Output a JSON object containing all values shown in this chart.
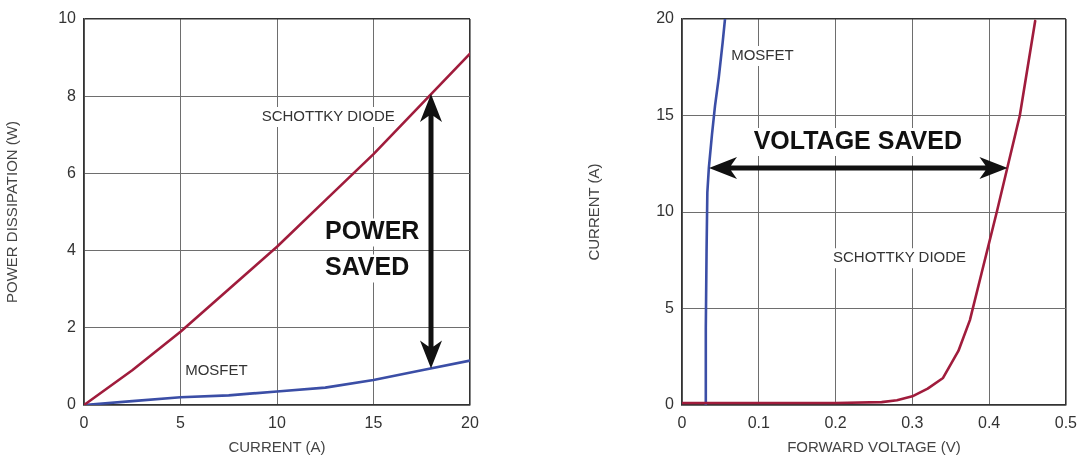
{
  "chart_data": [
    {
      "type": "line",
      "xlabel": "CURRENT (A)",
      "ylabel": "POWER DISSIPATION (W)",
      "xlim": [
        0,
        20
      ],
      "xticks": [
        0,
        5,
        10,
        15,
        20
      ],
      "ylim": [
        0,
        10
      ],
      "yticks": [
        0,
        2,
        4,
        6,
        8,
        10
      ],
      "grid": true,
      "legend": false,
      "marker": "none",
      "x": [
        0,
        2.5,
        5,
        7.5,
        10,
        12.5,
        15,
        17.5,
        20
      ],
      "series": [
        {
          "name": "SCHOTTKY DIODE",
          "color": "#a01c3c",
          "values": [
            0,
            0.9,
            1.9,
            3,
            4.1,
            5.3,
            6.5,
            7.8,
            9.1
          ]
        },
        {
          "name": "MOSFET",
          "color": "#3b4ea6",
          "values": [
            0,
            0.1,
            0.2,
            0.25,
            0.35,
            0.45,
            0.65,
            0.9,
            1.15
          ]
        }
      ],
      "annotations": [
        "POWER SAVED"
      ]
    },
    {
      "type": "line",
      "xlabel": "FORWARD VOLTAGE (V)",
      "ylabel": "CURRENT (A)",
      "xlim": [
        0,
        0.5
      ],
      "xticks": [
        0,
        0.1,
        0.2,
        0.3,
        0.4,
        0.5
      ],
      "ylim": [
        0,
        20
      ],
      "yticks": [
        0,
        5,
        10,
        15,
        20
      ],
      "grid": true,
      "legend": false,
      "marker": "none",
      "series": [
        {
          "name": "SCHOTTKY DIODE",
          "color": "#a01c3c",
          "x": [
            0,
            0.1,
            0.2,
            0.26,
            0.28,
            0.3,
            0.32,
            0.34,
            0.36,
            0.375,
            0.39,
            0.41,
            0.425,
            0.44,
            0.46
          ],
          "values": [
            0.1,
            0.1,
            0.1,
            0.15,
            0.25,
            0.45,
            0.85,
            1.4,
            2.8,
            4.4,
            6.8,
            10,
            12.5,
            15,
            19.9
          ]
        },
        {
          "name": "MOSFET",
          "color": "#3b4ea6",
          "x": [
            0.031,
            0.031,
            0.032,
            0.033,
            0.035,
            0.039,
            0.043,
            0.048,
            0.053,
            0.056
          ],
          "values": [
            0,
            4,
            8,
            11,
            12.3,
            14,
            15.5,
            17,
            18.8,
            20
          ]
        }
      ],
      "annotations": [
        "VOLTAGE SAVED"
      ]
    }
  ]
}
